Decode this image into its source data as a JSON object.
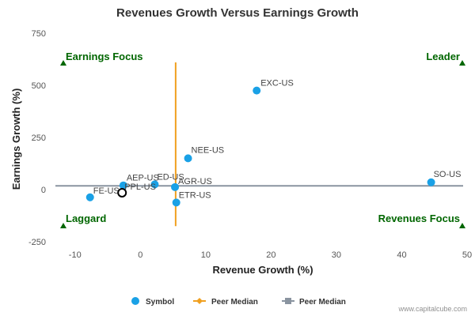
{
  "chart_data": {
    "type": "scatter",
    "title": "Revenues Growth Versus Earnings Growth",
    "xlabel": "Revenue Growth (%)",
    "ylabel": "Earnings Growth (%)",
    "xlim": [
      -13,
      50
    ],
    "ylim": [
      -250,
      750
    ],
    "xticks": [
      -10,
      0,
      10,
      20,
      30,
      40,
      50
    ],
    "yticks": [
      -250,
      0,
      250,
      500,
      750
    ],
    "grid": false,
    "series": [
      {
        "name": "Symbol",
        "color": "#1aa1e6",
        "points": [
          {
            "label": "EXC-US",
            "x": 17.8,
            "y": 475
          },
          {
            "label": "NEE-US",
            "x": 7.3,
            "y": 150
          },
          {
            "label": "SO-US",
            "x": 44.5,
            "y": 35
          },
          {
            "label": "AEP-US",
            "x": -2.6,
            "y": 20
          },
          {
            "label": "ED-US",
            "x": 2.2,
            "y": 25
          },
          {
            "label": "AGR-US",
            "x": 5.3,
            "y": 12
          },
          {
            "label": "FE-US",
            "x": -7.7,
            "y": -37
          },
          {
            "label": "ETR-US",
            "x": 5.5,
            "y": -62
          }
        ]
      }
    ],
    "highlight_point": {
      "label": "PPL-US",
      "x": -2.8,
      "y": -15
    },
    "peer_median_x": {
      "name": "Peer Median",
      "color": "#f0a020",
      "value": 5.4,
      "y_range": [
        -175,
        610
      ]
    },
    "peer_median_y": {
      "name": "Peer Median",
      "color": "#8a94a0",
      "value": 18
    },
    "quadrants": {
      "top_left": "Earnings Focus",
      "top_right": "Leader",
      "bottom_left": "Laggard",
      "bottom_right": "Revenues Focus",
      "marker_color": "#006600"
    },
    "legend": [
      "Symbol",
      "Peer Median",
      "Peer Median"
    ],
    "legend_position": "bottom-center"
  },
  "footer": {
    "credit": "www.capitalcube.com"
  }
}
